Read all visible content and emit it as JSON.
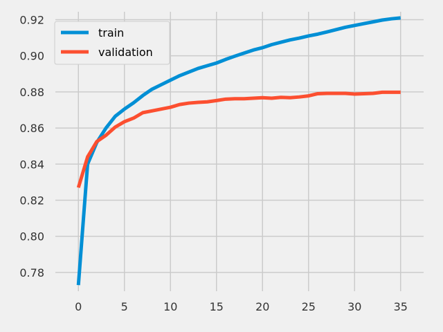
{
  "chart_data": {
    "type": "line",
    "x": [
      0,
      1,
      2,
      3,
      4,
      5,
      6,
      7,
      8,
      9,
      10,
      11,
      12,
      13,
      14,
      15,
      16,
      17,
      18,
      19,
      20,
      21,
      22,
      23,
      24,
      25,
      26,
      27,
      28,
      29,
      30,
      31,
      32,
      33,
      34,
      35
    ],
    "series": [
      {
        "name": "train",
        "color": "#008fd5",
        "values": [
          0.773,
          0.84,
          0.852,
          0.86,
          0.8665,
          0.8705,
          0.874,
          0.878,
          0.8815,
          0.884,
          0.8865,
          0.889,
          0.891,
          0.893,
          0.8945,
          0.896,
          0.898,
          0.8998,
          0.9015,
          0.9032,
          0.9045,
          0.9062,
          0.9075,
          0.9088,
          0.9098,
          0.911,
          0.912,
          0.9132,
          0.9145,
          0.9158,
          0.9168,
          0.9178,
          0.9188,
          0.9198,
          0.9205,
          0.921
        ]
      },
      {
        "name": "validation",
        "color": "#fc4f30",
        "values": [
          0.827,
          0.844,
          0.8525,
          0.856,
          0.8605,
          0.8635,
          0.8655,
          0.8685,
          0.8695,
          0.8705,
          0.8715,
          0.873,
          0.8738,
          0.8742,
          0.8745,
          0.8752,
          0.876,
          0.8762,
          0.8762,
          0.8765,
          0.8768,
          0.8765,
          0.877,
          0.8768,
          0.8772,
          0.8778,
          0.879,
          0.8792,
          0.8792,
          0.8792,
          0.8788,
          0.879,
          0.8792,
          0.8798,
          0.8798,
          0.8798
        ]
      }
    ],
    "xlim": [
      -2.5,
      37.5
    ],
    "ylim": [
      0.7696,
      0.9244
    ],
    "xticks": [
      0,
      5,
      10,
      15,
      20,
      25,
      30,
      35
    ],
    "yticks": [
      0.78,
      0.8,
      0.82,
      0.84,
      0.86,
      0.88,
      0.9,
      0.92
    ],
    "xtick_labels": [
      "0",
      "5",
      "10",
      "15",
      "20",
      "25",
      "30",
      "35"
    ],
    "ytick_labels": [
      "0.78",
      "0.80",
      "0.82",
      "0.84",
      "0.86",
      "0.88",
      "0.90",
      "0.92"
    ],
    "grid": true,
    "legend_position": "top-left",
    "title": "",
    "xlabel": "",
    "ylabel": ""
  }
}
